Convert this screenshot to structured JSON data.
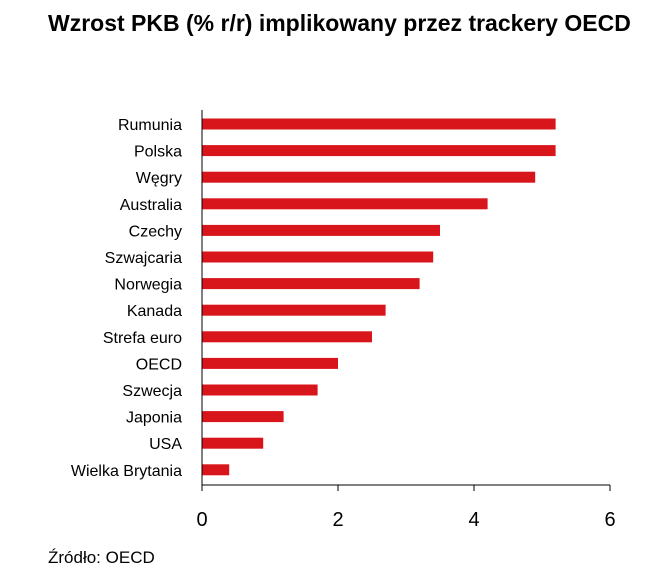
{
  "chart_data": {
    "type": "bar",
    "orientation": "horizontal",
    "title": "Wzrost PKB (% r/r) implikowany przez trackery OECD",
    "categories": [
      "Rumunia",
      "Polska",
      "Węgry",
      "Australia",
      "Czechy",
      "Szwajcaria",
      "Norwegia",
      "Kanada",
      "Strefa euro",
      "OECD",
      "Szwecja",
      "Japonia",
      "USA",
      "Wielka Brytania"
    ],
    "values": [
      5.2,
      5.2,
      4.9,
      4.2,
      3.5,
      3.4,
      3.2,
      2.7,
      2.5,
      2.0,
      1.7,
      1.2,
      0.9,
      0.4
    ],
    "xlim": [
      0,
      6
    ],
    "xticks": [
      "0",
      "2",
      "4",
      "6"
    ],
    "grid": false,
    "bar_color": "#d9151c"
  },
  "source": "Źródło: OECD"
}
